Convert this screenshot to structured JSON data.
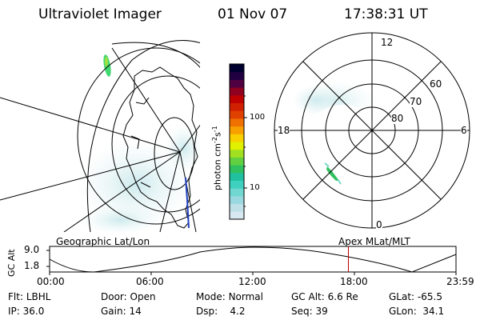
{
  "header": {
    "instrument": "Ultraviolet Imager",
    "date": "01 Nov 07",
    "time": "17:38:31 UT"
  },
  "geo_panel": {
    "label": "Geographic Lat/Lon"
  },
  "apex_panel": {
    "label": "Apex MLat/MLT",
    "mlt_labels": {
      "top": "12",
      "bottom": "0",
      "left": "18",
      "right": "6"
    },
    "lat_labels": [
      "60",
      "70",
      "80"
    ]
  },
  "colorbar": {
    "unit_label": "photon cm",
    "unit_sup1": "-2",
    "unit_mid": "s",
    "unit_sup2": "-1",
    "tick_100": "100",
    "tick_10": "10",
    "colors": [
      "#d8e8f0",
      "#c0e0e8",
      "#9ad8e0",
      "#70d8d0",
      "#40d0c0",
      "#20c0a0",
      "#30c060",
      "#60d040",
      "#a0e020",
      "#e0f000",
      "#f8d000",
      "#f8a000",
      "#f07000",
      "#e04000",
      "#d02000",
      "#c00000",
      "#900020",
      "#500040",
      "#200040",
      "#000030"
    ]
  },
  "timeline": {
    "ylabel": "GC Alt",
    "y_top": "9.0",
    "y_bottom": "1.8",
    "ticks": [
      "00:00",
      "06:00",
      "12:00",
      "18:00",
      "23:59"
    ],
    "marker_time": "17:38",
    "marker_color": "#c00000"
  },
  "info": {
    "filter_label": "Flt:",
    "filter_value": "LBHL",
    "ip_label": "IP:",
    "ip_value": "36.0",
    "door_label": "Door:",
    "door_value": "Open",
    "gain_label": "Gain:",
    "gain_value": "14",
    "mode_label": "Mode:",
    "mode_value": "Normal",
    "dsp_label": "Dsp:",
    "dsp_value": "4.2",
    "gcalt_label": "GC Alt:",
    "gcalt_value": "6.6 Re",
    "seq_label": "Seq:",
    "seq_value": "39",
    "glat_label": "GLat:",
    "glat_value": "-65.5",
    "glon_label": "GLon:",
    "glon_value": "34.1"
  }
}
